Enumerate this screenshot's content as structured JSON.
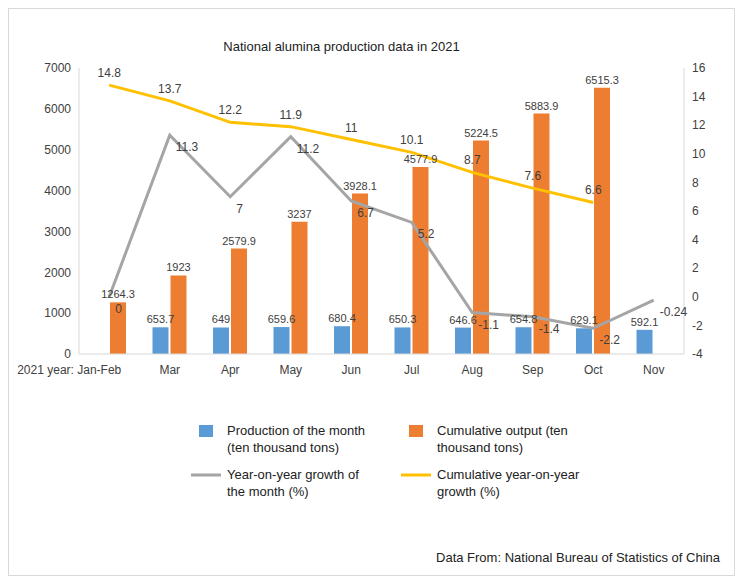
{
  "chart_data": {
    "type": "bar",
    "title": "National alumina production data in 2021",
    "categories": [
      "2021 year: Jan-Feb",
      "Mar",
      "Apr",
      "May",
      "Jun",
      "Jul",
      "Aug",
      "Sep",
      "Oct",
      "Nov"
    ],
    "series": [
      {
        "name": "Production of the month (ten thousand tons)",
        "color": "#5b9bd5",
        "type": "bar",
        "values": [
          0,
          653.7,
          649,
          659.6,
          680.4,
          650.3,
          646.6,
          654.8,
          629.1,
          592.1
        ]
      },
      {
        "name": "Cumulative output (ten thousand tons)",
        "color": "#ed7d31",
        "type": "bar",
        "values": [
          1264.3,
          1923,
          2579.9,
          3237,
          3928.1,
          4577.9,
          5224.5,
          5883.9,
          6515.3,
          null
        ]
      },
      {
        "name": "Year-on-year growth of the month (%)",
        "color": "#a5a5a5",
        "type": "line",
        "axis": "y2",
        "values": [
          0,
          11.3,
          7,
          11.2,
          6.7,
          5.2,
          -1.1,
          -1.4,
          -2.2,
          -0.24
        ]
      },
      {
        "name": "Cumulative year-on-year growth (%)",
        "color": "#ffc000",
        "type": "line",
        "axis": "y2",
        "values": [
          14.8,
          13.7,
          12.2,
          11.9,
          11,
          10.1,
          8.7,
          7.6,
          6.6,
          null
        ]
      }
    ],
    "ylim": [
      0,
      7000
    ],
    "yticks": [
      0,
      1000,
      2000,
      3000,
      4000,
      5000,
      6000,
      7000
    ],
    "y2lim": [
      -4,
      16
    ],
    "y2ticks": [
      -4,
      -2,
      0,
      2,
      4,
      6,
      8,
      10,
      12,
      14,
      16
    ],
    "grid": false,
    "legend": "bottom",
    "data_labels": true,
    "annotations": [
      "Data From: National Bureau of Statistics of China"
    ]
  }
}
